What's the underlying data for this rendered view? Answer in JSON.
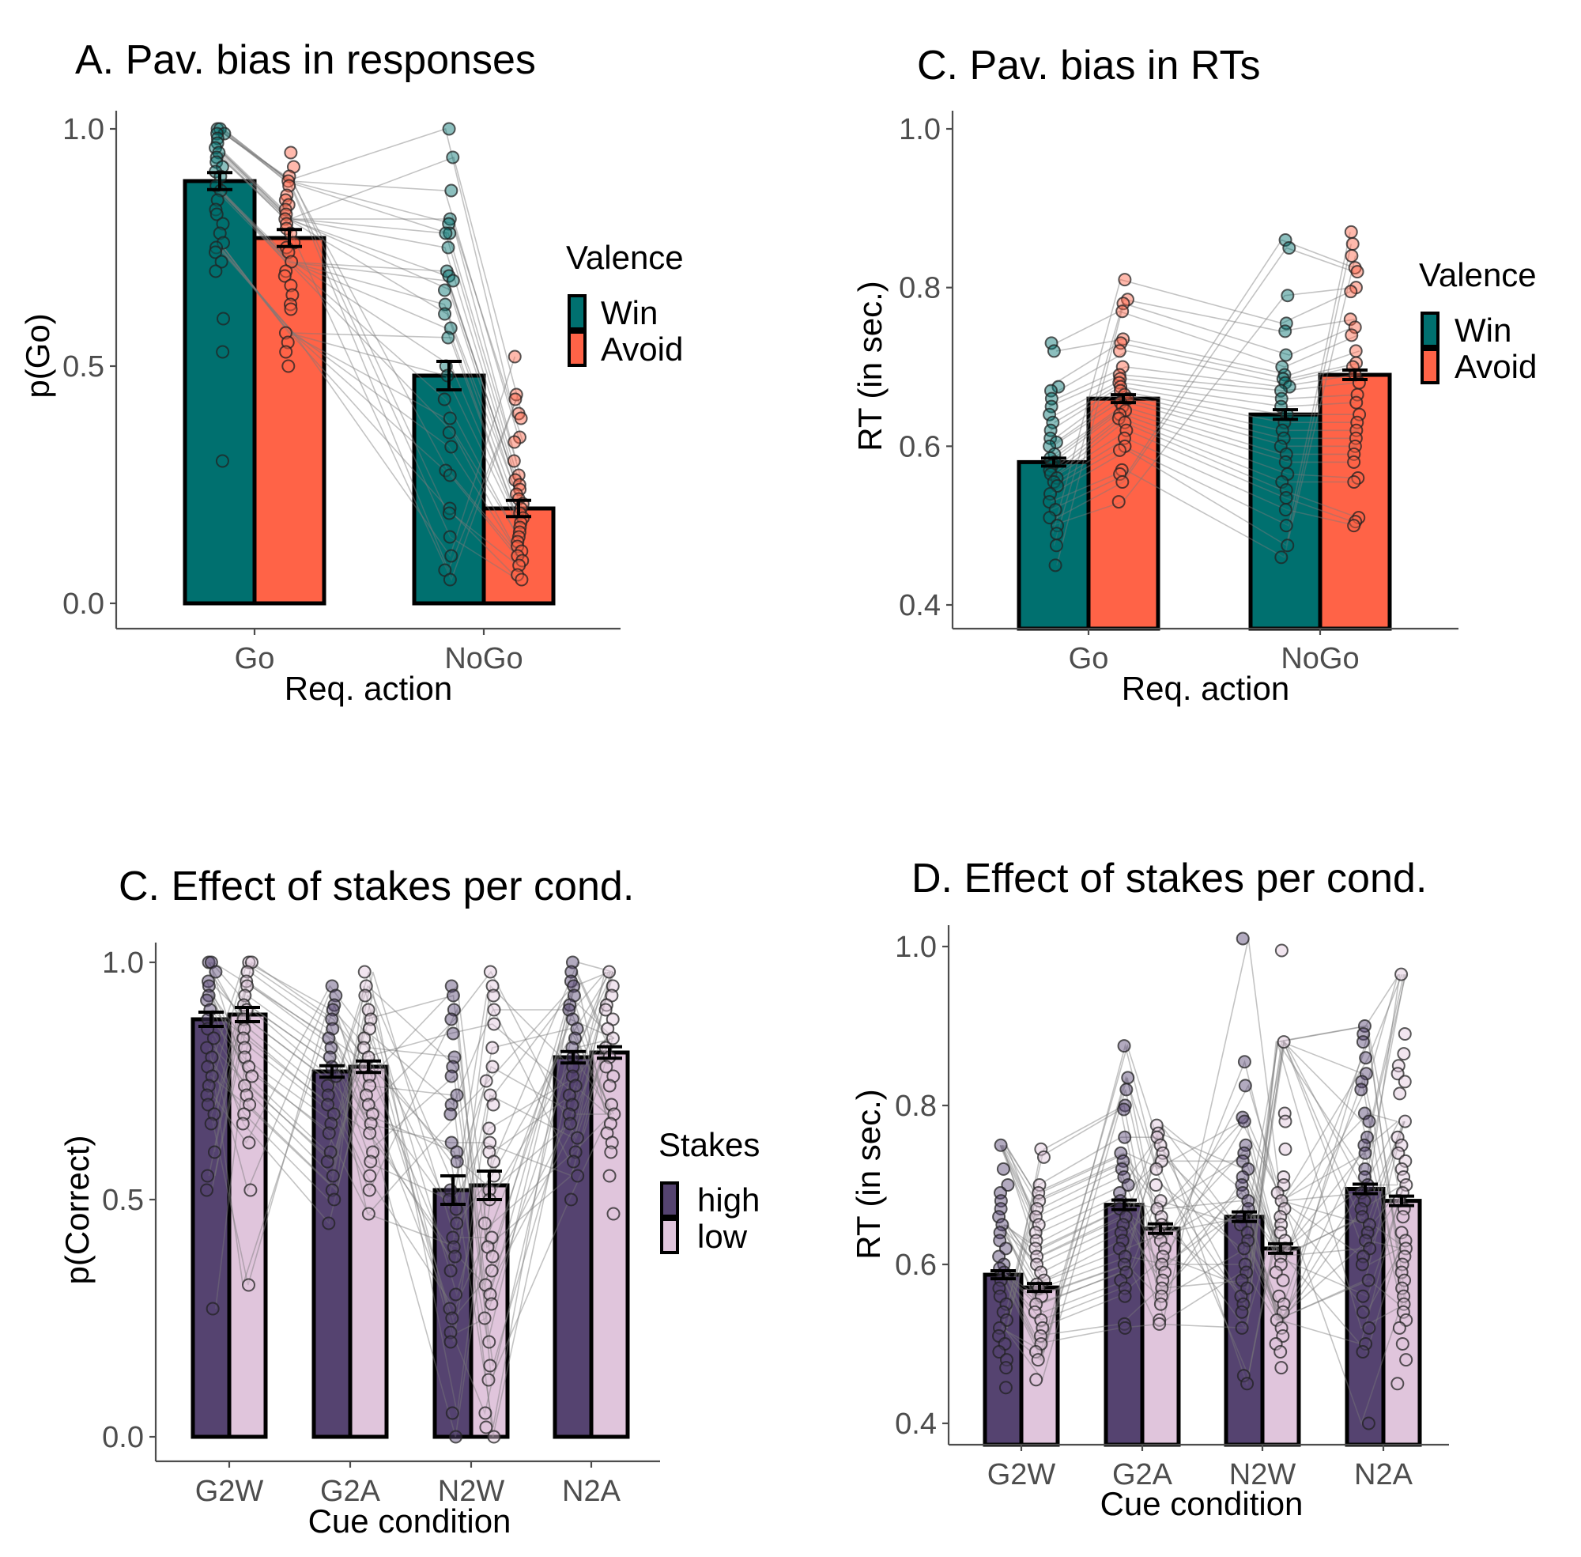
{
  "chart_data": [
    {
      "id": "A",
      "type": "bar",
      "title": "A. Pav. bias in responses",
      "xlabel": "Req. action",
      "ylabel": "p(Go)",
      "ylim": [
        0.0,
        1.0
      ],
      "yticks": [
        "0.0",
        "0.5",
        "1.0"
      ],
      "yticks_values": [
        0.0,
        0.5,
        1.0
      ],
      "categories": [
        "Go",
        "NoGo"
      ],
      "legend": {
        "title": "Valence",
        "position": "right"
      },
      "series": [
        {
          "name": "Win",
          "color": "#00706F",
          "values": [
            0.89,
            0.48
          ],
          "se": [
            0.018,
            0.03
          ]
        },
        {
          "name": "Avoid",
          "color": "#FF6347",
          "values": [
            0.77,
            0.2
          ],
          "se": [
            0.018,
            0.017
          ]
        }
      ],
      "points": {
        "Win": [
          [
            1.0,
            1.0,
            0.99,
            0.99,
            0.98,
            0.97,
            0.96,
            0.95,
            0.94,
            0.93,
            0.92,
            0.91,
            0.9,
            0.88,
            0.87,
            0.85,
            0.83,
            0.82,
            0.8,
            0.78,
            0.76,
            0.75,
            0.74,
            0.72,
            0.7,
            0.6,
            0.53,
            0.3
          ],
          [
            1.0,
            0.94,
            0.87,
            0.81,
            0.8,
            0.78,
            0.78,
            0.75,
            0.7,
            0.69,
            0.68,
            0.66,
            0.63,
            0.61,
            0.58,
            0.56,
            0.5,
            0.48,
            0.43,
            0.39,
            0.36,
            0.33,
            0.28,
            0.27,
            0.2,
            0.19,
            0.14,
            0.1,
            0.07,
            0.05
          ]
        ],
        "Avoid": [
          [
            0.95,
            0.92,
            0.9,
            0.89,
            0.88,
            0.86,
            0.85,
            0.84,
            0.83,
            0.82,
            0.81,
            0.8,
            0.79,
            0.78,
            0.76,
            0.75,
            0.74,
            0.72,
            0.7,
            0.69,
            0.67,
            0.65,
            0.63,
            0.62,
            0.57,
            0.55,
            0.53,
            0.5
          ],
          [
            0.52,
            0.44,
            0.43,
            0.4,
            0.39,
            0.35,
            0.34,
            0.3,
            0.27,
            0.26,
            0.25,
            0.24,
            0.23,
            0.22,
            0.21,
            0.2,
            0.19,
            0.18,
            0.17,
            0.16,
            0.15,
            0.14,
            0.13,
            0.12,
            0.11,
            0.1,
            0.09,
            0.08,
            0.06,
            0.05
          ]
        ]
      }
    },
    {
      "id": "B",
      "type": "bar",
      "title": "C. Pav. bias in RTs",
      "xlabel": "Req. action",
      "ylabel": "RT (in sec.)",
      "ylim": [
        0.37,
        1.03
      ],
      "yticks": [
        "0.4",
        "0.6",
        "0.8",
        "1.0"
      ],
      "yticks_values": [
        0.4,
        0.6,
        0.8,
        1.0
      ],
      "categories": [
        "Go",
        "NoGo"
      ],
      "legend": {
        "title": "Valence",
        "position": "right"
      },
      "series": [
        {
          "name": "Win",
          "color": "#00706F",
          "values": [
            0.58,
            0.64
          ],
          "se": [
            0.005,
            0.006
          ]
        },
        {
          "name": "Avoid",
          "color": "#FF6347",
          "values": [
            0.66,
            0.69
          ],
          "se": [
            0.005,
            0.006
          ]
        }
      ],
      "points": {
        "Win": [
          [
            0.73,
            0.72,
            0.675,
            0.67,
            0.66,
            0.65,
            0.64,
            0.63,
            0.62,
            0.61,
            0.605,
            0.6,
            0.59,
            0.585,
            0.58,
            0.575,
            0.57,
            0.565,
            0.56,
            0.555,
            0.55,
            0.54,
            0.53,
            0.52,
            0.51,
            0.5,
            0.49,
            0.475,
            0.45
          ],
          [
            0.86,
            0.85,
            0.79,
            0.755,
            0.745,
            0.715,
            0.7,
            0.69,
            0.685,
            0.68,
            0.675,
            0.67,
            0.66,
            0.65,
            0.64,
            0.63,
            0.62,
            0.61,
            0.6,
            0.59,
            0.58,
            0.565,
            0.555,
            0.545,
            0.535,
            0.52,
            0.5,
            0.475,
            0.46
          ]
        ],
        "Avoid": [
          [
            0.81,
            0.785,
            0.78,
            0.77,
            0.735,
            0.73,
            0.72,
            0.7,
            0.69,
            0.685,
            0.68,
            0.675,
            0.67,
            0.665,
            0.66,
            0.655,
            0.65,
            0.645,
            0.64,
            0.635,
            0.63,
            0.62,
            0.61,
            0.6,
            0.595,
            0.57,
            0.565,
            0.555,
            0.53
          ],
          [
            0.87,
            0.855,
            0.84,
            0.825,
            0.82,
            0.8,
            0.795,
            0.76,
            0.75,
            0.74,
            0.72,
            0.705,
            0.7,
            0.69,
            0.68,
            0.665,
            0.655,
            0.64,
            0.63,
            0.62,
            0.61,
            0.6,
            0.59,
            0.58,
            0.56,
            0.555,
            0.51,
            0.505,
            0.5
          ]
        ]
      }
    },
    {
      "id": "C",
      "type": "bar",
      "title": "C. Effect of stakes per cond.",
      "xlabel": "Cue condition",
      "ylabel": "p(Correct)",
      "ylim": [
        0.0,
        1.0
      ],
      "yticks": [
        "0.0",
        "0.5",
        "1.0"
      ],
      "yticks_values": [
        0.0,
        0.5,
        1.0
      ],
      "categories": [
        "G2W",
        "G2A",
        "N2W",
        "N2A"
      ],
      "legend": {
        "title": "Stakes",
        "position": "right"
      },
      "series": [
        {
          "name": "high",
          "color": "#554370",
          "values": [
            0.88,
            0.77,
            0.52,
            0.8
          ],
          "se": [
            0.015,
            0.012,
            0.03,
            0.012
          ]
        },
        {
          "name": "low",
          "color": "#E0C5DC",
          "values": [
            0.89,
            0.78,
            0.53,
            0.81
          ],
          "se": [
            0.015,
            0.012,
            0.03,
            0.012
          ]
        }
      ],
      "points": {
        "high": [
          [
            1.0,
            1.0,
            0.98,
            0.96,
            0.95,
            0.93,
            0.92,
            0.9,
            0.88,
            0.86,
            0.84,
            0.82,
            0.8,
            0.78,
            0.76,
            0.74,
            0.72,
            0.7,
            0.68,
            0.66,
            0.6,
            0.55,
            0.52,
            0.27
          ],
          [
            0.95,
            0.93,
            0.91,
            0.9,
            0.88,
            0.86,
            0.84,
            0.82,
            0.8,
            0.78,
            0.76,
            0.74,
            0.72,
            0.7,
            0.68,
            0.66,
            0.64,
            0.6,
            0.58,
            0.55,
            0.52,
            0.5,
            0.45
          ],
          [
            0.95,
            0.93,
            0.9,
            0.88,
            0.85,
            0.8,
            0.78,
            0.76,
            0.72,
            0.7,
            0.68,
            0.62,
            0.6,
            0.58,
            0.52,
            0.5,
            0.48,
            0.45,
            0.42,
            0.4,
            0.38,
            0.35,
            0.3,
            0.27,
            0.25,
            0.22,
            0.2,
            0.05,
            0.0
          ],
          [
            1.0,
            0.98,
            0.96,
            0.95,
            0.93,
            0.91,
            0.9,
            0.88,
            0.86,
            0.84,
            0.82,
            0.8,
            0.78,
            0.76,
            0.74,
            0.72,
            0.7,
            0.68,
            0.66,
            0.63,
            0.6,
            0.58,
            0.55,
            0.5
          ]
        ],
        "low": [
          [
            1.0,
            1.0,
            0.98,
            0.96,
            0.95,
            0.93,
            0.91,
            0.9,
            0.88,
            0.86,
            0.84,
            0.82,
            0.8,
            0.78,
            0.76,
            0.74,
            0.72,
            0.7,
            0.68,
            0.66,
            0.62,
            0.52,
            0.32
          ],
          [
            0.98,
            0.95,
            0.93,
            0.9,
            0.88,
            0.86,
            0.84,
            0.82,
            0.8,
            0.78,
            0.76,
            0.74,
            0.72,
            0.7,
            0.68,
            0.66,
            0.64,
            0.6,
            0.58,
            0.55,
            0.52,
            0.47
          ],
          [
            0.98,
            0.95,
            0.93,
            0.9,
            0.87,
            0.82,
            0.78,
            0.75,
            0.72,
            0.7,
            0.65,
            0.62,
            0.6,
            0.58,
            0.55,
            0.52,
            0.5,
            0.45,
            0.42,
            0.4,
            0.38,
            0.35,
            0.32,
            0.3,
            0.28,
            0.25,
            0.2,
            0.15,
            0.12,
            0.05,
            0.02,
            0.0
          ],
          [
            0.98,
            0.95,
            0.93,
            0.91,
            0.9,
            0.88,
            0.86,
            0.84,
            0.82,
            0.8,
            0.78,
            0.76,
            0.74,
            0.7,
            0.68,
            0.66,
            0.64,
            0.62,
            0.6,
            0.55,
            0.47
          ]
        ]
      }
    },
    {
      "id": "D",
      "type": "bar",
      "title": "D. Effect of stakes per cond.",
      "xlabel": "Cue condition",
      "ylabel": "RT (in sec.)",
      "ylim": [
        0.37,
        1.03
      ],
      "yticks": [
        "0.4",
        "0.6",
        "0.8",
        "1.0"
      ],
      "yticks_values": [
        0.4,
        0.6,
        0.8,
        1.0
      ],
      "categories": [
        "G2W",
        "G2A",
        "N2W",
        "N2A"
      ],
      "legend": {
        "title": "Stakes",
        "position": "right"
      },
      "series": [
        {
          "name": "high",
          "color": "#554370",
          "values": [
            0.587,
            0.675,
            0.66,
            0.695
          ],
          "se": [
            0.005,
            0.006,
            0.006,
            0.006
          ]
        },
        {
          "name": "low",
          "color": "#E0C5DC",
          "values": [
            0.571,
            0.645,
            0.62,
            0.68
          ],
          "se": [
            0.005,
            0.006,
            0.006,
            0.006
          ]
        }
      ],
      "points": {
        "high": [
          [
            0.75,
            0.72,
            0.7,
            0.69,
            0.68,
            0.67,
            0.66,
            0.65,
            0.64,
            0.63,
            0.62,
            0.61,
            0.6,
            0.595,
            0.59,
            0.58,
            0.57,
            0.56,
            0.55,
            0.54,
            0.53,
            0.52,
            0.51,
            0.5,
            0.49,
            0.48,
            0.47,
            0.445
          ],
          [
            0.875,
            0.835,
            0.82,
            0.8,
            0.795,
            0.76,
            0.74,
            0.73,
            0.72,
            0.71,
            0.7,
            0.69,
            0.68,
            0.67,
            0.66,
            0.65,
            0.64,
            0.63,
            0.62,
            0.61,
            0.6,
            0.59,
            0.58,
            0.57,
            0.56,
            0.525,
            0.52
          ],
          [
            1.01,
            0.855,
            0.825,
            0.785,
            0.78,
            0.75,
            0.74,
            0.73,
            0.72,
            0.71,
            0.7,
            0.69,
            0.68,
            0.67,
            0.66,
            0.65,
            0.64,
            0.63,
            0.62,
            0.6,
            0.59,
            0.58,
            0.57,
            0.56,
            0.55,
            0.54,
            0.52,
            0.46,
            0.45
          ],
          [
            0.9,
            0.89,
            0.88,
            0.86,
            0.84,
            0.83,
            0.82,
            0.79,
            0.78,
            0.76,
            0.75,
            0.74,
            0.72,
            0.71,
            0.7,
            0.69,
            0.68,
            0.67,
            0.66,
            0.65,
            0.64,
            0.63,
            0.62,
            0.61,
            0.6,
            0.58,
            0.56,
            0.54,
            0.52,
            0.5,
            0.49,
            0.4
          ]
        ],
        "low": [
          [
            0.745,
            0.735,
            0.7,
            0.69,
            0.68,
            0.67,
            0.66,
            0.65,
            0.64,
            0.63,
            0.62,
            0.61,
            0.6,
            0.59,
            0.58,
            0.575,
            0.57,
            0.56,
            0.55,
            0.54,
            0.53,
            0.52,
            0.51,
            0.5,
            0.49,
            0.48,
            0.455
          ],
          [
            0.775,
            0.765,
            0.76,
            0.75,
            0.74,
            0.73,
            0.72,
            0.7,
            0.68,
            0.67,
            0.66,
            0.65,
            0.64,
            0.63,
            0.62,
            0.61,
            0.6,
            0.59,
            0.58,
            0.57,
            0.56,
            0.55,
            0.53,
            0.525
          ],
          [
            0.995,
            0.88,
            0.79,
            0.78,
            0.745,
            0.71,
            0.7,
            0.69,
            0.68,
            0.67,
            0.66,
            0.65,
            0.64,
            0.63,
            0.62,
            0.61,
            0.6,
            0.59,
            0.58,
            0.56,
            0.55,
            0.54,
            0.53,
            0.52,
            0.51,
            0.5,
            0.49,
            0.47
          ],
          [
            0.965,
            0.89,
            0.865,
            0.85,
            0.84,
            0.83,
            0.815,
            0.78,
            0.76,
            0.75,
            0.74,
            0.73,
            0.72,
            0.71,
            0.7,
            0.69,
            0.68,
            0.67,
            0.66,
            0.64,
            0.63,
            0.62,
            0.61,
            0.6,
            0.59,
            0.58,
            0.57,
            0.56,
            0.55,
            0.54,
            0.53,
            0.52,
            0.5,
            0.48,
            0.45
          ]
        ]
      }
    }
  ]
}
